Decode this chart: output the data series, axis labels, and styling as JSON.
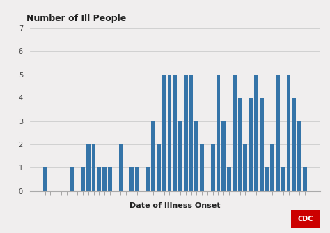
{
  "title": "Number of Ill People",
  "xlabel": "Date of Illness Onset",
  "bar_color": "#3574a8",
  "background_color": "#f0eeee",
  "plot_bg": "#f0eeee",
  "ylim": [
    0,
    7
  ],
  "yticks": [
    0,
    1,
    2,
    3,
    4,
    5,
    6,
    7
  ],
  "values": [
    1,
    0,
    0,
    0,
    0,
    1,
    0,
    1,
    2,
    2,
    1,
    1,
    1,
    0,
    2,
    0,
    1,
    1,
    0,
    1,
    3,
    2,
    5,
    5,
    5,
    3,
    5,
    5,
    3,
    2,
    0,
    2,
    5,
    3,
    1,
    5,
    4,
    2,
    4,
    5,
    4,
    1,
    2,
    5,
    1,
    5,
    4,
    3,
    1
  ],
  "title_fontsize": 9,
  "xlabel_fontsize": 8,
  "ylabel_fontsize": 7,
  "tick_fontsize": 7
}
